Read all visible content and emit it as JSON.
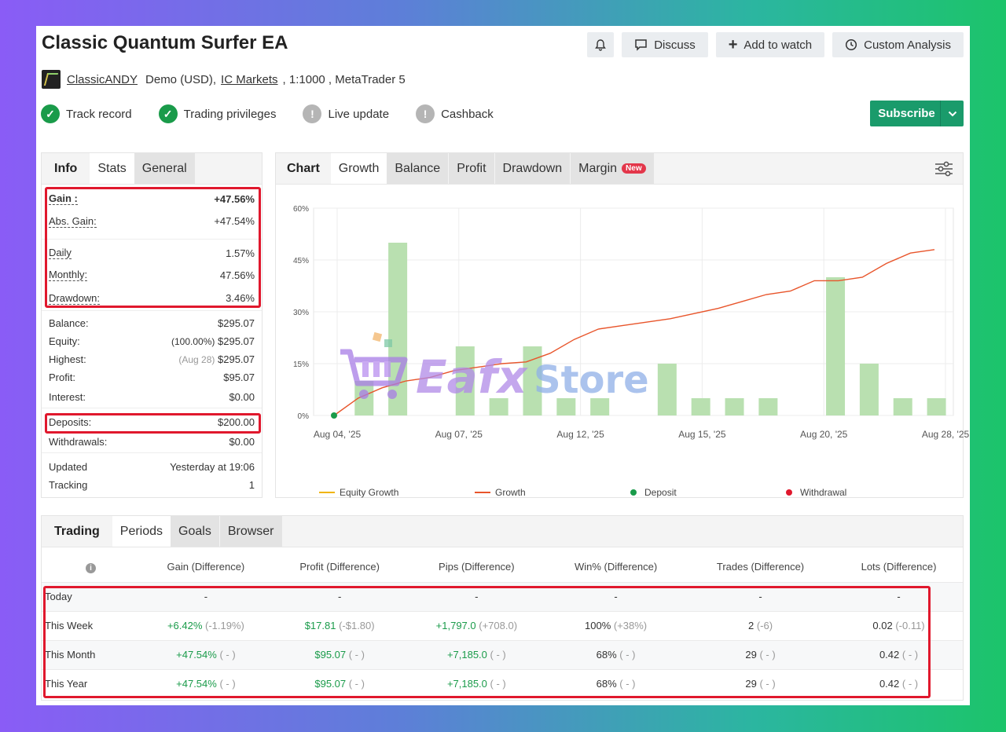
{
  "header": {
    "title": "Classic Quantum Surfer EA",
    "buttons": {
      "discuss": "Discuss",
      "watch": "Add to watch",
      "analysis": "Custom Analysis"
    },
    "author": "ClassicANDY",
    "account_type": "Demo (USD),",
    "broker": "IC Markets",
    "leverage": ", 1:1000 , MetaTrader 5"
  },
  "badges": [
    {
      "label": "Track record",
      "status": "verified"
    },
    {
      "label": "Trading privileges",
      "status": "verified"
    },
    {
      "label": "Live update",
      "status": "not-verified"
    },
    {
      "label": "Cashback",
      "status": "not-verified"
    }
  ],
  "subscribe_label": "Subscribe",
  "info_tabs": [
    "Info",
    "Stats",
    "General"
  ],
  "info": {
    "gain": {
      "label": "Gain :",
      "value": "+47.56%"
    },
    "abs_gain": {
      "label": "Abs. Gain:",
      "value": "+47.54%"
    },
    "daily": {
      "label": "Daily",
      "value": "1.57%"
    },
    "monthly": {
      "label": "Monthly:",
      "value": "47.56%"
    },
    "drawdown": {
      "label": "Drawdown:",
      "value": "3.46%"
    },
    "balance": {
      "label": "Balance:",
      "value": "$295.07"
    },
    "equity": {
      "label": "Equity:",
      "prefix": "(100.00%)",
      "value": "$295.07"
    },
    "highest": {
      "label": "Highest:",
      "prefix": "(Aug 28)",
      "value": "$295.07"
    },
    "profit": {
      "label": "Profit:",
      "value": "$95.07"
    },
    "interest": {
      "label": "Interest:",
      "value": "$0.00"
    },
    "deposits": {
      "label": "Deposits:",
      "value": "$200.00"
    },
    "withdrawals": {
      "label": "Withdrawals:",
      "value": "$0.00"
    },
    "updated": {
      "label": "Updated",
      "value": "Yesterday at 19:06"
    },
    "tracking": {
      "label": "Tracking",
      "value": "1"
    }
  },
  "chart_tabs": {
    "chart": "Chart",
    "growth": "Growth",
    "balance": "Balance",
    "profit": "Profit",
    "drawdown": "Drawdown",
    "margin": "Margin",
    "new": "New"
  },
  "chart_data": {
    "type": "line",
    "y_ticks": [
      "0%",
      "15%",
      "30%",
      "45%",
      "60%"
    ],
    "ylim": [
      0,
      60
    ],
    "x_ticks": [
      "Aug 04, '25",
      "Aug 07, '25",
      "Aug 12, '25",
      "Aug 15, '25",
      "Aug 20, '25",
      "Aug 28, '25"
    ],
    "bars": [
      0,
      10,
      50,
      0,
      20,
      5,
      20,
      5,
      5,
      0,
      15,
      5,
      5,
      5,
      0,
      40,
      15,
      5,
      5
    ],
    "growth": [
      0,
      5,
      8,
      10,
      11,
      13,
      14,
      15,
      15.5,
      18,
      22,
      25,
      26,
      27,
      28,
      29.5,
      31,
      33,
      35,
      36,
      39,
      39,
      40,
      44,
      47,
      48
    ],
    "deposit_point": {
      "x": 0,
      "y": 0
    },
    "legend": [
      "Equity Growth",
      "Growth",
      "Deposit",
      "Withdrawal"
    ],
    "colors": {
      "equity": "#f0b400",
      "growth": "#e8552b",
      "deposit": "#1a9b4a",
      "withdrawal": "#e0182d",
      "bars": "#b9e0b0"
    },
    "grid": true,
    "legend_position": "bottom"
  },
  "watermark": {
    "text1": "Eafx",
    "text2": "Store"
  },
  "periods_tabs": [
    "Trading",
    "Periods",
    "Goals",
    "Browser"
  ],
  "periods": {
    "headers": [
      "Gain (Difference)",
      "Profit (Difference)",
      "Pips (Difference)",
      "Win% (Difference)",
      "Trades (Difference)",
      "Lots (Difference)"
    ],
    "rows": [
      {
        "label": "Today",
        "cells": [
          [
            "-",
            ""
          ],
          [
            "-",
            ""
          ],
          [
            "-",
            ""
          ],
          [
            "-",
            ""
          ],
          [
            "-",
            ""
          ],
          [
            "-",
            ""
          ]
        ]
      },
      {
        "label": "This Week",
        "cells": [
          [
            "+6.42%",
            "(-1.19%)"
          ],
          [
            "$17.81",
            "(-$1.80)"
          ],
          [
            "+1,797.0",
            "(+708.0)"
          ],
          [
            "100%",
            "(+38%)"
          ],
          [
            "2",
            "(-6)"
          ],
          [
            "0.02",
            "(-0.11)"
          ]
        ]
      },
      {
        "label": "This Month",
        "cells": [
          [
            "+47.54%",
            "( - )"
          ],
          [
            "$95.07",
            "( - )"
          ],
          [
            "+7,185.0",
            "( - )"
          ],
          [
            "68%",
            "( - )"
          ],
          [
            "29",
            "( - )"
          ],
          [
            "0.42",
            "( - )"
          ]
        ]
      },
      {
        "label": "This Year",
        "cells": [
          [
            "+47.54%",
            "( - )"
          ],
          [
            "$95.07",
            "( - )"
          ],
          [
            "+7,185.0",
            "( - )"
          ],
          [
            "68%",
            "( - )"
          ],
          [
            "29",
            "( - )"
          ],
          [
            "0.42",
            "( - )"
          ]
        ]
      }
    ]
  }
}
